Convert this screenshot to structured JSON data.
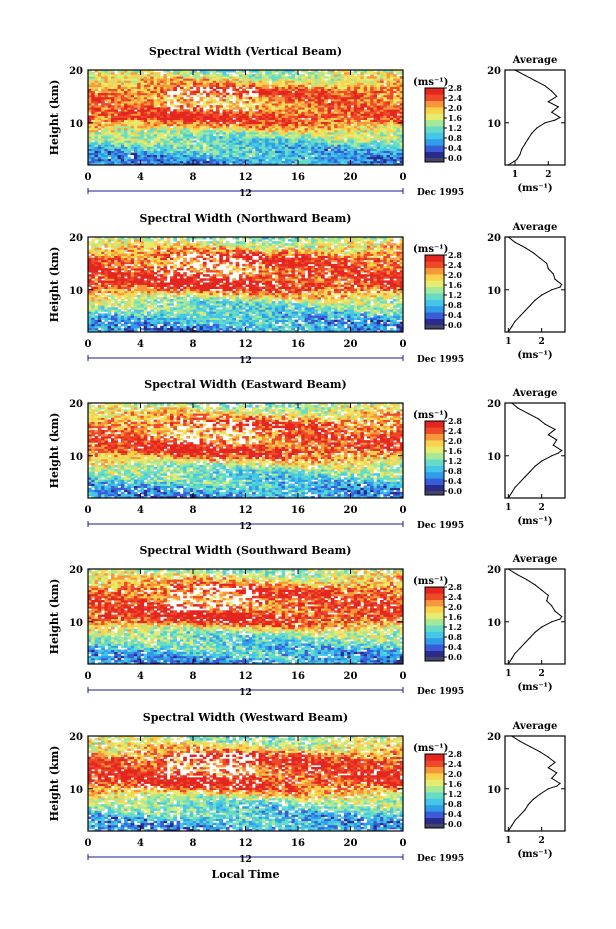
{
  "figure": {
    "xlabel": "Local Time",
    "date_label": "Dec 1995",
    "day_label": "12",
    "colorbar_unit": "(ms⁻¹)",
    "colormap": [
      "#2b2b8c",
      "#3a5cd8",
      "#2f9de8",
      "#45c6e8",
      "#66dcc6",
      "#a6e89a",
      "#e6ec70",
      "#fbd24c",
      "#f7963a",
      "#ee4a2a",
      "#e3261f"
    ],
    "missing_color": "#ffffff"
  },
  "chart_data": [
    {
      "type": "heatmap",
      "title": "Spectral Width (Vertical Beam)",
      "ylabel": "Height (km)",
      "x_ticks": [
        "0",
        "4",
        "8",
        "12",
        "16",
        "20",
        "0"
      ],
      "y_ticks": [
        "10",
        "20"
      ],
      "xlim": [
        0,
        24
      ],
      "ylim": [
        2,
        20
      ],
      "colorbar": {
        "label": "(ms⁻¹)",
        "min": 0.0,
        "max": 2.8,
        "ticks": [
          "2.8",
          "2.4",
          "2.0",
          "1.6",
          "1.2",
          "0.8",
          "0.4",
          "0.0"
        ]
      },
      "field": {
        "heights_km": [
          2,
          4,
          6,
          8,
          10,
          11,
          12,
          14,
          16,
          18,
          20
        ],
        "typical_width_ms": [
          0.6,
          0.8,
          1.1,
          1.4,
          2.3,
          2.6,
          2.4,
          2.1,
          2.5,
          1.8,
          1.4
        ],
        "missing_fraction": 0.02
      },
      "profile": {
        "title": "Average",
        "xlabel": "(ms⁻¹)",
        "x_ticks": [
          "1",
          "2"
        ],
        "y_ticks": [
          "10",
          "20"
        ],
        "xlim": [
          0.7,
          2.5
        ],
        "heights_km": [
          2,
          3,
          4,
          5,
          6,
          7,
          8,
          9,
          10,
          10.5,
          11,
          12,
          13,
          14,
          15,
          16,
          17,
          18,
          19,
          20
        ],
        "values": [
          0.8,
          1.05,
          1.15,
          1.2,
          1.3,
          1.4,
          1.5,
          1.65,
          1.9,
          2.2,
          2.35,
          2.1,
          2.3,
          2.0,
          2.25,
          2.1,
          1.9,
          1.6,
          1.3,
          1.0
        ]
      }
    },
    {
      "type": "heatmap",
      "title": "Spectral Width (Northward Beam)",
      "ylabel": "Height (km)",
      "x_ticks": [
        "0",
        "4",
        "8",
        "12",
        "16",
        "20",
        "0"
      ],
      "y_ticks": [
        "10",
        "20"
      ],
      "xlim": [
        0,
        24
      ],
      "ylim": [
        2,
        20
      ],
      "colorbar": {
        "label": "(ms⁻¹)",
        "min": 0.0,
        "max": 2.8,
        "ticks": [
          "2.8",
          "2.4",
          "2.0",
          "1.6",
          "1.2",
          "0.8",
          "0.4",
          "0.0"
        ]
      },
      "field": {
        "heights_km": [
          2,
          4,
          6,
          8,
          10,
          11,
          12,
          14,
          16,
          18,
          20
        ],
        "typical_width_ms": [
          0.6,
          0.8,
          1.1,
          1.4,
          2.4,
          2.7,
          2.6,
          2.3,
          2.5,
          1.9,
          1.3
        ],
        "missing_fraction": 0.12
      },
      "profile": {
        "title": "Average",
        "xlabel": "(ms⁻¹)",
        "x_ticks": [
          "1",
          "2"
        ],
        "y_ticks": [
          "10",
          "20"
        ],
        "xlim": [
          0.9,
          2.7
        ],
        "heights_km": [
          2,
          3,
          4,
          5,
          6,
          7,
          8,
          9,
          10,
          10.5,
          11,
          12,
          13,
          14,
          15,
          16,
          17,
          18,
          19,
          20
        ],
        "values": [
          1.0,
          1.1,
          1.2,
          1.35,
          1.5,
          1.65,
          1.8,
          2.0,
          2.3,
          2.55,
          2.6,
          2.4,
          2.35,
          2.2,
          2.15,
          1.95,
          1.75,
          1.5,
          1.2,
          1.0
        ]
      }
    },
    {
      "type": "heatmap",
      "title": "Spectral Width (Eastward Beam)",
      "ylabel": "Height (km)",
      "x_ticks": [
        "0",
        "4",
        "8",
        "12",
        "16",
        "20",
        "0"
      ],
      "y_ticks": [
        "10",
        "20"
      ],
      "xlim": [
        0,
        24
      ],
      "ylim": [
        2,
        20
      ],
      "colorbar": {
        "label": "(ms⁻¹)",
        "min": 0.0,
        "max": 2.8,
        "ticks": [
          "2.8",
          "2.4",
          "2.0",
          "1.6",
          "1.2",
          "0.8",
          "0.4",
          "0.0"
        ]
      },
      "field": {
        "heights_km": [
          2,
          4,
          6,
          8,
          10,
          11,
          12,
          14,
          16,
          18,
          20
        ],
        "typical_width_ms": [
          0.6,
          0.8,
          1.1,
          1.4,
          2.3,
          2.6,
          2.5,
          2.2,
          2.4,
          1.9,
          1.3
        ],
        "missing_fraction": 0.12
      },
      "profile": {
        "title": "Average",
        "xlabel": "(ms⁻¹)",
        "x_ticks": [
          "1",
          "2"
        ],
        "y_ticks": [
          "10",
          "20"
        ],
        "xlim": [
          0.9,
          2.7
        ],
        "heights_km": [
          2,
          3,
          4,
          5,
          6,
          7,
          8,
          9,
          10,
          10.5,
          11,
          12,
          13,
          14,
          15,
          16,
          17,
          18,
          19,
          20
        ],
        "values": [
          1.0,
          1.1,
          1.2,
          1.35,
          1.5,
          1.65,
          1.8,
          2.0,
          2.3,
          2.5,
          2.6,
          2.35,
          2.45,
          2.2,
          2.4,
          2.1,
          1.9,
          1.6,
          1.3,
          1.1
        ]
      }
    },
    {
      "type": "heatmap",
      "title": "Spectral Width (Southward Beam)",
      "ylabel": "Height (km)",
      "x_ticks": [
        "0",
        "4",
        "8",
        "12",
        "16",
        "20",
        "0"
      ],
      "y_ticks": [
        "10",
        "20"
      ],
      "xlim": [
        0,
        24
      ],
      "ylim": [
        2,
        20
      ],
      "colorbar": {
        "label": "(ms⁻¹)",
        "min": 0.0,
        "max": 2.8,
        "ticks": [
          "2.8",
          "2.4",
          "2.0",
          "1.6",
          "1.2",
          "0.8",
          "0.4",
          "0.0"
        ]
      },
      "field": {
        "heights_km": [
          2,
          4,
          6,
          8,
          10,
          11,
          12,
          14,
          16,
          18,
          20
        ],
        "typical_width_ms": [
          0.6,
          0.8,
          1.1,
          1.4,
          2.4,
          2.7,
          2.5,
          2.3,
          2.5,
          1.9,
          1.3
        ],
        "missing_fraction": 0.12
      },
      "profile": {
        "title": "Average",
        "xlabel": "(ms⁻¹)",
        "x_ticks": [
          "1",
          "2"
        ],
        "y_ticks": [
          "10",
          "20"
        ],
        "xlim": [
          0.9,
          2.7
        ],
        "heights_km": [
          2,
          3,
          4,
          5,
          6,
          7,
          8,
          9,
          10,
          10.5,
          11,
          12,
          13,
          14,
          15,
          16,
          17,
          18,
          19,
          20
        ],
        "values": [
          1.0,
          1.1,
          1.2,
          1.35,
          1.5,
          1.65,
          1.8,
          2.0,
          2.3,
          2.55,
          2.6,
          2.4,
          2.3,
          2.15,
          2.2,
          2.0,
          1.8,
          1.55,
          1.25,
          1.0
        ]
      }
    },
    {
      "type": "heatmap",
      "title": "Spectral Width (Westward Beam)",
      "ylabel": "Height (km)",
      "x_ticks": [
        "0",
        "4",
        "8",
        "12",
        "16",
        "20",
        "0"
      ],
      "y_ticks": [
        "10",
        "20"
      ],
      "xlim": [
        0,
        24
      ],
      "ylim": [
        2,
        20
      ],
      "colorbar": {
        "label": "(ms⁻¹)",
        "min": 0.0,
        "max": 2.8,
        "ticks": [
          "2.8",
          "2.4",
          "2.0",
          "1.6",
          "1.2",
          "0.8",
          "0.4",
          "0.0"
        ]
      },
      "field": {
        "heights_km": [
          2,
          4,
          6,
          8,
          10,
          11,
          12,
          14,
          16,
          18,
          20
        ],
        "typical_width_ms": [
          0.6,
          0.8,
          1.1,
          1.4,
          2.3,
          2.6,
          2.6,
          2.4,
          2.5,
          1.8,
          1.3
        ],
        "missing_fraction": 0.14
      },
      "profile": {
        "title": "Average",
        "xlabel": "(ms⁻¹)",
        "x_ticks": [
          "1",
          "2"
        ],
        "y_ticks": [
          "10",
          "20"
        ],
        "xlim": [
          0.9,
          2.7
        ],
        "heights_km": [
          2,
          3,
          4,
          5,
          6,
          7,
          8,
          9,
          10,
          10.5,
          11,
          12,
          13,
          14,
          15,
          16,
          17,
          18,
          19,
          20
        ],
        "values": [
          1.0,
          1.1,
          1.2,
          1.35,
          1.5,
          1.6,
          1.75,
          1.95,
          2.2,
          2.45,
          2.55,
          2.3,
          2.45,
          2.2,
          2.4,
          2.2,
          1.95,
          1.65,
          1.35,
          1.1
        ]
      }
    }
  ]
}
